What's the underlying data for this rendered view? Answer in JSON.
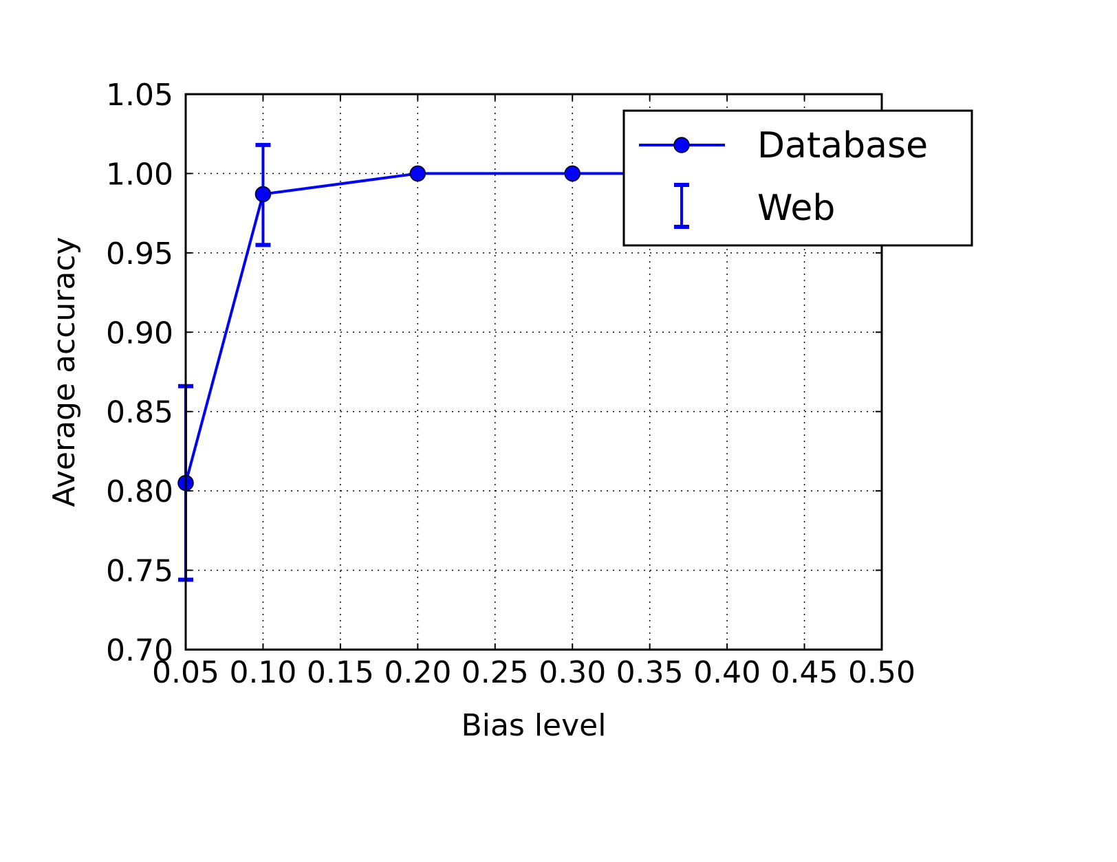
{
  "chart_data": {
    "type": "line",
    "xlabel": "Bias level",
    "ylabel": "Average accuracy",
    "xlim": [
      0.05,
      0.5
    ],
    "ylim": [
      0.7,
      1.05
    ],
    "xticks": [
      "0.05",
      "0.10",
      "0.15",
      "0.20",
      "0.25",
      "0.30",
      "0.35",
      "0.40",
      "0.45",
      "0.50"
    ],
    "xtick_values": [
      0.05,
      0.1,
      0.15,
      0.2,
      0.25,
      0.3,
      0.35,
      0.4,
      0.45,
      0.5
    ],
    "yticks": [
      "0.70",
      "0.75",
      "0.80",
      "0.85",
      "0.90",
      "0.95",
      "1.00",
      "1.05"
    ],
    "ytick_values": [
      0.7,
      0.75,
      0.8,
      0.85,
      0.9,
      0.95,
      1.0,
      1.05
    ],
    "grid": true,
    "legend_position": "top-right",
    "color": "#0000ff",
    "series": [
      {
        "name": "Database",
        "style": "line-with-markers",
        "x": [
          0.05,
          0.1,
          0.2,
          0.3,
          0.5
        ],
        "values": [
          0.805,
          0.987,
          1.0,
          1.0,
          1.0
        ]
      },
      {
        "name": "Web",
        "style": "errorbar",
        "x": [
          0.05,
          0.1
        ],
        "center": [
          0.805,
          0.987
        ],
        "lower": [
          0.744,
          0.955
        ],
        "upper": [
          0.866,
          1.018
        ]
      }
    ]
  }
}
